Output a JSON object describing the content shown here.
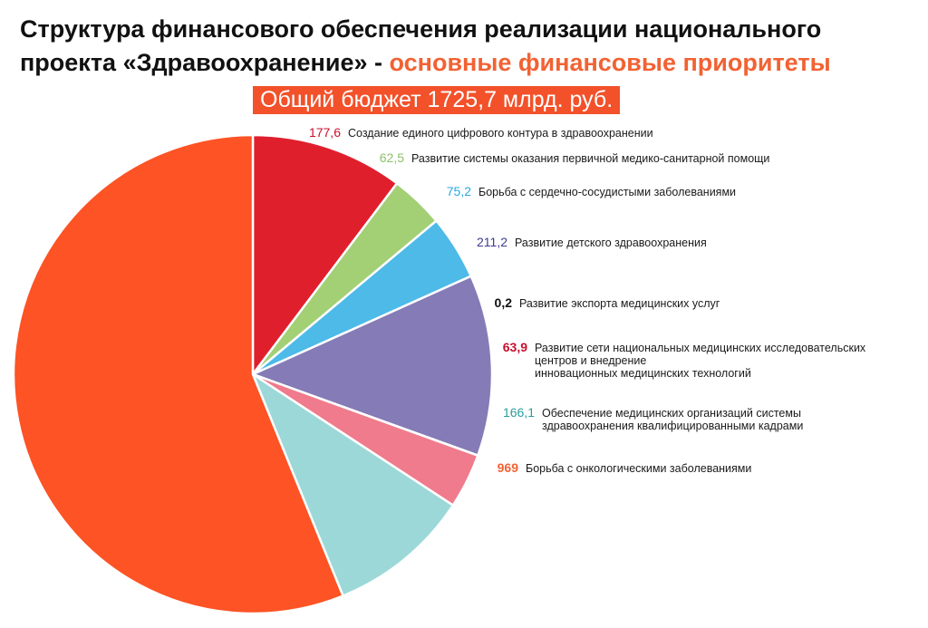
{
  "header": {
    "title_line1": "Структура финансового обеспечения реализации национального",
    "title_line2_plain": "проекта «Здравоохранение» -",
    "title_line2_accent": "основные финансовые приоритеты",
    "budget": "Общий бюджет 1725,7 млрд. руб."
  },
  "chart_data": {
    "type": "pie",
    "total": 1725.7,
    "unit": "млрд. руб.",
    "start": "top",
    "direction": "clockwise",
    "slices": [
      {
        "label": "Создание единого цифрового контура в здравоохранении",
        "value": 177.6,
        "value_text": "177,6",
        "color": "#e01f2d",
        "label_color": "#c8102e"
      },
      {
        "label": "Развитие системы оказания первичной медико-санитарной помощи",
        "value": 62.5,
        "value_text": "62,5",
        "color": "#a3cf75",
        "label_color": "#8dc26b"
      },
      {
        "label": "Борьба с сердечно-сосудистыми заболеваниями",
        "value": 75.2,
        "value_text": "75,2",
        "color": "#4dbae8",
        "label_color": "#29a8df"
      },
      {
        "label": "Развитие детского здравоохранения",
        "value": 211.2,
        "value_text": "211,2",
        "color": "#857bb6",
        "label_color": "#3b3d8f"
      },
      {
        "label": "Развитие экспорта медицинских услуг",
        "value": 0.2,
        "value_text": "0,2",
        "color": "#333333",
        "label_color": "#111111"
      },
      {
        "label": "Развитие сети национальных медицинских исследовательских\nцентров и внедрение\nинновационных медицинских технологий",
        "value": 63.9,
        "value_text": "63,9",
        "color": "#ef7b8c",
        "label_color": "#c8102e"
      },
      {
        "label": "Обеспечение медицинских организаций системы\nздравоохранения квалифицированными кадрами",
        "value": 166.1,
        "value_text": "166,1",
        "color": "#9dd8d9",
        "label_color": "#2a9d9f"
      },
      {
        "label": "Борьба с онкологическими заболеваниями",
        "value": 969,
        "value_text": "969",
        "color": "#fd5325",
        "label_color": "#f26233"
      }
    ]
  }
}
